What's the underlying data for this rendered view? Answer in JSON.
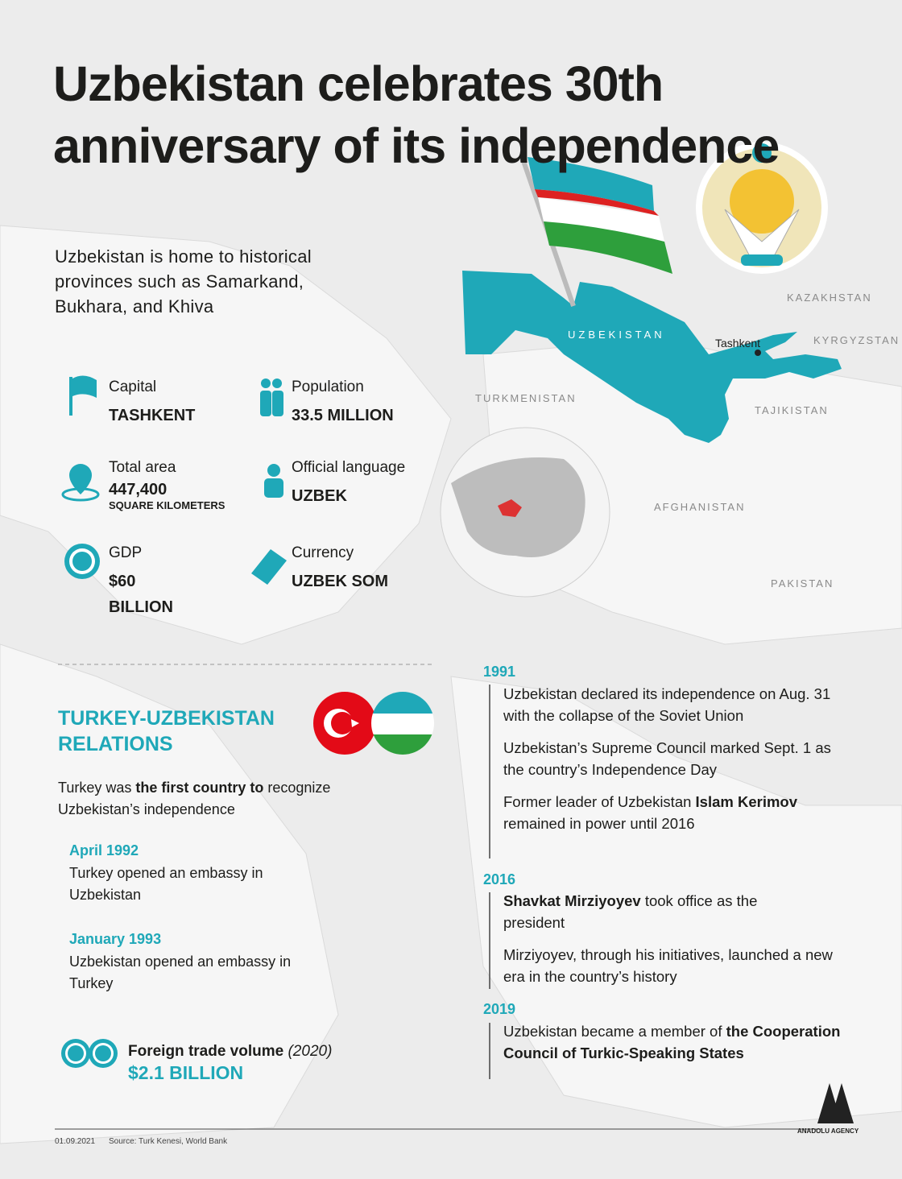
{
  "header": {
    "title": "Uzbekistan celebrates 30th anniversary of its independence",
    "subtitle": "Uzbekistan is home to historical provinces such as Samarkand, Bukhara, and Khiva"
  },
  "facts": [
    {
      "label": "Capital",
      "value": "TASHKENT"
    },
    {
      "label": "Population",
      "value": "33.5 MILLION"
    },
    {
      "label": "Total area",
      "value": "447,400",
      "unit": "SQUARE KILOMETERS"
    },
    {
      "label": "Official language",
      "value": "UZBEK"
    },
    {
      "label": "GDP",
      "value": "$60 BILLION"
    },
    {
      "label": "Currency",
      "value": "UZBEK SOM"
    }
  ],
  "map": {
    "labels": [
      "KAZAKHSTAN",
      "UZBEKISTAN",
      "Tashkent",
      "KYRGYZSTAN",
      "TURKMENISTAN",
      "TAJIKISTAN",
      "AFGHANISTAN",
      "PAKISTAN"
    ]
  },
  "relations": {
    "title": "TURKEY-UZBEKISTAN RELATIONS",
    "intro": [
      "Turkey was ",
      "the first country to",
      " recognize Uzbekistan’s independence"
    ],
    "events": [
      {
        "date": "April 1992",
        "text": "Turkey opened an embassy in Uzbekistan"
      },
      {
        "date": "January 1993",
        "text": "Uzbekistan opened an embassy in Turkey"
      }
    ],
    "trade": {
      "label": "Foreign trade volume",
      "year": "(2020)",
      "value": "$2.1 BILLION"
    }
  },
  "timeline": [
    {
      "year": "1991",
      "items": [
        [
          "Uzbekistan declared its independence on Aug. 31 with the collapse of the Soviet Union"
        ],
        [
          "Uzbekistan’s Supreme Council marked Sept. 1 as the country’s Independence Day"
        ],
        [
          "Former leader of Uzbekistan ",
          "Islam Kerimov",
          " remained in power until 2016"
        ]
      ]
    },
    {
      "year": "2016",
      "items": [
        [
          "Shavkat Mirziyoyev",
          " took office as the president"
        ],
        [
          "Mirziyoyev, through his initiatives, launched a new era in the country’s history"
        ]
      ]
    },
    {
      "year": "2019",
      "items": [
        [
          "Uzbekistan became a member of ",
          "the Cooperation Council of Turkic-Speaking States"
        ]
      ]
    }
  ],
  "footer": {
    "date": "01.09.2021",
    "source": "Source: Turk Kenesi, World Bank",
    "agency": "ANADOLU AGENCY"
  }
}
